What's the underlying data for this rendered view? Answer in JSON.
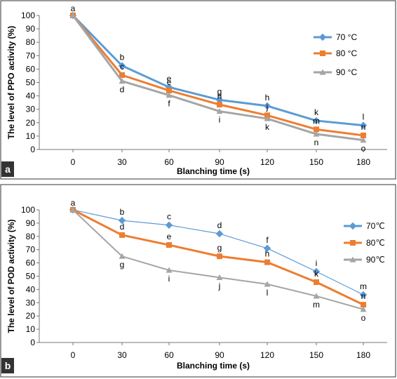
{
  "chart_data": [
    {
      "type": "line",
      "panel_label": "a",
      "xlabel": "Blanching time (s)",
      "ylabel": "The level of PPO activity (%)",
      "x": [
        0,
        30,
        60,
        90,
        120,
        150,
        180
      ],
      "xticks": [
        "0",
        "30",
        "60",
        "90",
        "120",
        "150",
        "180"
      ],
      "ylim": [
        0,
        100
      ],
      "yticks": [
        "0",
        "10",
        "20",
        "30",
        "40",
        "50",
        "60",
        "70",
        "80",
        "90",
        "100"
      ],
      "grid": false,
      "legend_position": "right",
      "series": [
        {
          "name": "70 °C",
          "color": "#5b9bd5",
          "marker": "diamond",
          "values": [
            100,
            62.5,
            46.5,
            37,
            32.5,
            21.5,
            18
          ],
          "labels": [
            "a",
            "b",
            "e",
            "g",
            "h",
            "k",
            "l"
          ]
        },
        {
          "name": "80 °C",
          "color": "#ed7d31",
          "marker": "square",
          "values": [
            100,
            55.5,
            44,
            33.5,
            25.5,
            15,
            10.5
          ],
          "labels": [
            "",
            "c",
            "e",
            "h",
            "j",
            "m",
            "n"
          ]
        },
        {
          "name": "90 °C",
          "color": "#a5a5a5",
          "marker": "triangle",
          "values": [
            100,
            51,
            40.5,
            28.5,
            23,
            11.5,
            7
          ],
          "labels": [
            "",
            "d",
            "f",
            "i",
            "k",
            "n",
            "o"
          ]
        }
      ]
    },
    {
      "type": "line",
      "panel_label": "b",
      "xlabel": "Blanching time (s)",
      "ylabel": "The level of POD activity (%)",
      "x": [
        0,
        30,
        60,
        90,
        120,
        150,
        180
      ],
      "xticks": [
        "0",
        "30",
        "60",
        "90",
        "120",
        "150",
        "180"
      ],
      "ylim": [
        0,
        100
      ],
      "yticks": [
        "0",
        "10",
        "20",
        "30",
        "40",
        "50",
        "60",
        "70",
        "80",
        "90",
        "100"
      ],
      "grid": false,
      "legend_position": "right",
      "series": [
        {
          "name": "70℃",
          "color": "#5b9bd5",
          "marker": "diamond",
          "values": [
            100,
            92,
            88.5,
            82,
            71,
            53.5,
            36
          ],
          "labels": [
            "a",
            "b",
            "c",
            "d",
            "f",
            "i",
            "m"
          ]
        },
        {
          "name": "80℃",
          "color": "#ed7d31",
          "marker": "square",
          "values": [
            100,
            81,
            73.5,
            65,
            60.5,
            45.5,
            28.5
          ],
          "labels": [
            "",
            "d",
            "e",
            "g",
            "h",
            "k",
            "n"
          ]
        },
        {
          "name": "90℃",
          "color": "#a5a5a5",
          "marker": "triangle",
          "values": [
            100,
            65,
            54.5,
            49,
            44,
            35,
            25
          ],
          "labels": [
            "",
            "g",
            "i",
            "j",
            "l",
            "m",
            "o"
          ]
        }
      ]
    }
  ]
}
